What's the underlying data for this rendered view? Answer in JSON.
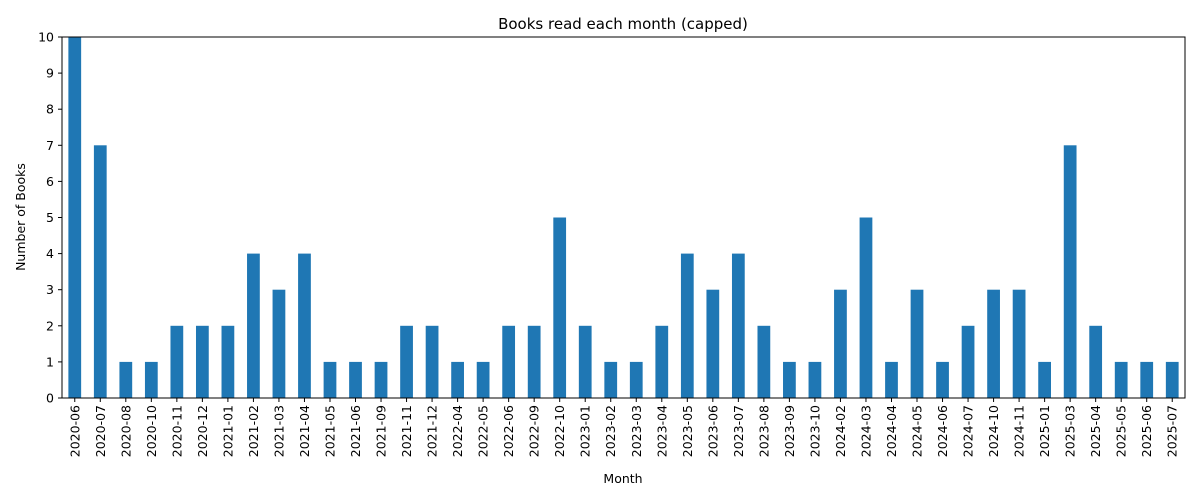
{
  "chart_data": {
    "type": "bar",
    "title": "Books read each month (capped)",
    "xlabel": "Month",
    "ylabel": "Number of Books",
    "ylim": [
      0,
      10
    ],
    "yticks": [
      0,
      1,
      2,
      3,
      4,
      5,
      6,
      7,
      8,
      9,
      10
    ],
    "grid": false,
    "color": "#1f77b4",
    "categories": [
      "2020-06",
      "2020-07",
      "2020-08",
      "2020-10",
      "2020-11",
      "2020-12",
      "2021-01",
      "2021-02",
      "2021-03",
      "2021-04",
      "2021-05",
      "2021-06",
      "2021-09",
      "2021-11",
      "2021-12",
      "2022-04",
      "2022-05",
      "2022-06",
      "2022-09",
      "2022-10",
      "2023-01",
      "2023-02",
      "2023-03",
      "2023-04",
      "2023-05",
      "2023-06",
      "2023-07",
      "2023-08",
      "2023-09",
      "2023-10",
      "2024-02",
      "2024-03",
      "2024-04",
      "2024-05",
      "2024-06",
      "2024-07",
      "2024-10",
      "2024-11",
      "2025-01",
      "2025-03",
      "2025-04",
      "2025-05",
      "2025-06",
      "2025-07"
    ],
    "values": [
      10,
      7,
      1,
      1,
      2,
      2,
      2,
      4,
      3,
      4,
      1,
      1,
      1,
      2,
      2,
      1,
      1,
      2,
      2,
      5,
      2,
      1,
      1,
      2,
      4,
      3,
      4,
      2,
      1,
      1,
      3,
      5,
      1,
      3,
      1,
      2,
      3,
      3,
      1,
      7,
      2,
      1,
      1,
      1
    ]
  }
}
